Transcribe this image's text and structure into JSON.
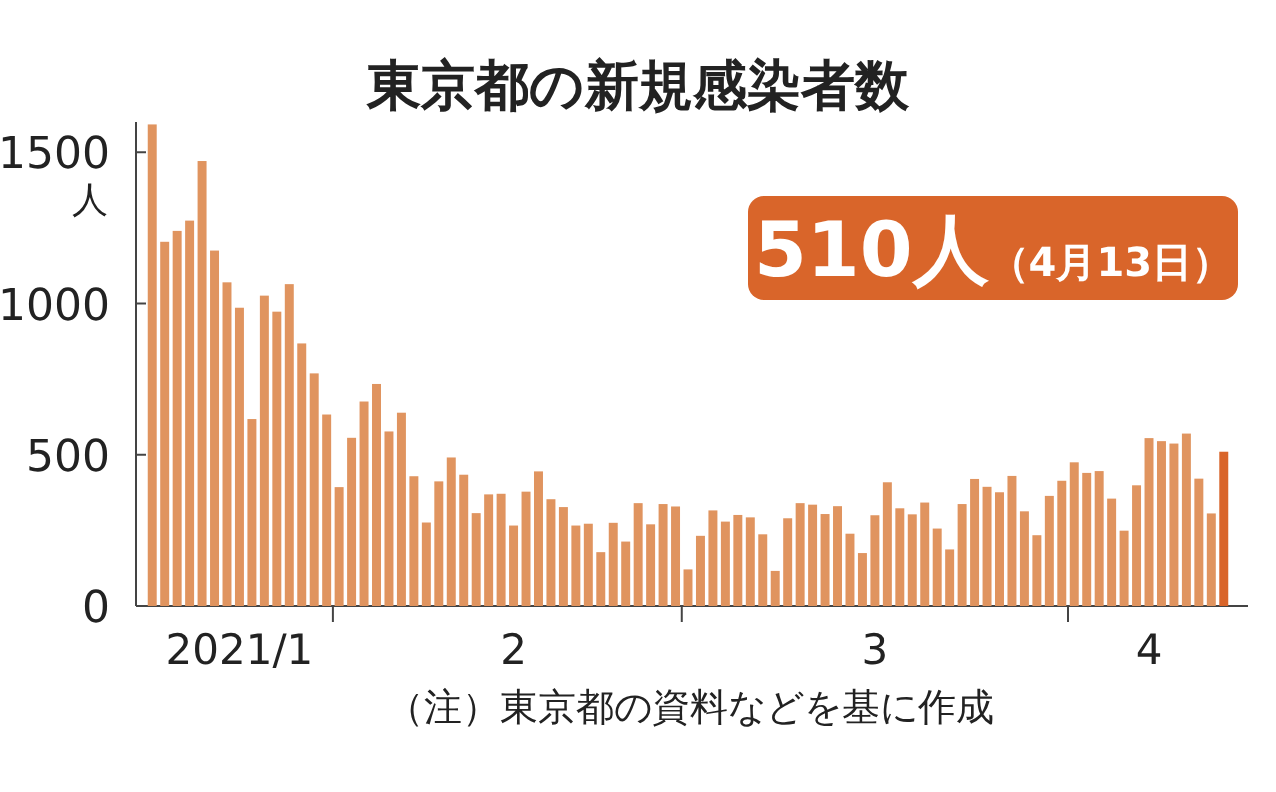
{
  "chart_data": {
    "type": "bar",
    "title": "東京都の新規感染者数",
    "ylabel": "人",
    "x": [
      "2021-01-17",
      "2021-01-18",
      "2021-01-19",
      "2021-01-20",
      "2021-01-21",
      "2021-01-22",
      "2021-01-23",
      "2021-01-24",
      "2021-01-25",
      "2021-01-26",
      "2021-01-27",
      "2021-01-28",
      "2021-01-29",
      "2021-01-30",
      "2021-01-31",
      "2021-02-01",
      "2021-02-02",
      "2021-02-03",
      "2021-02-04",
      "2021-02-05",
      "2021-02-06",
      "2021-02-07",
      "2021-02-08",
      "2021-02-09",
      "2021-02-10",
      "2021-02-11",
      "2021-02-12",
      "2021-02-13",
      "2021-02-14",
      "2021-02-15",
      "2021-02-16",
      "2021-02-17",
      "2021-02-18",
      "2021-02-19",
      "2021-02-20",
      "2021-02-21",
      "2021-02-22",
      "2021-02-23",
      "2021-02-24",
      "2021-02-25",
      "2021-02-26",
      "2021-02-27",
      "2021-02-28",
      "2021-03-01",
      "2021-03-02",
      "2021-03-03",
      "2021-03-04",
      "2021-03-05",
      "2021-03-06",
      "2021-03-07",
      "2021-03-08",
      "2021-03-09",
      "2021-03-10",
      "2021-03-11",
      "2021-03-12",
      "2021-03-13",
      "2021-03-14",
      "2021-03-15",
      "2021-03-16",
      "2021-03-17",
      "2021-03-18",
      "2021-03-19",
      "2021-03-20",
      "2021-03-21",
      "2021-03-22",
      "2021-03-23",
      "2021-03-24",
      "2021-03-25",
      "2021-03-26",
      "2021-03-27",
      "2021-03-28",
      "2021-03-29",
      "2021-03-30",
      "2021-03-31",
      "2021-04-01",
      "2021-04-02",
      "2021-04-03",
      "2021-04-04",
      "2021-04-05",
      "2021-04-06",
      "2021-04-07",
      "2021-04-08",
      "2021-04-09",
      "2021-04-10",
      "2021-04-11",
      "2021-04-12",
      "2021-04-13"
    ],
    "values": [
      1592,
      1204,
      1240,
      1274,
      1471,
      1175,
      1070,
      986,
      618,
      1026,
      973,
      1064,
      868,
      769,
      633,
      393,
      556,
      676,
      734,
      577,
      639,
      429,
      276,
      412,
      491,
      434,
      307,
      369,
      371,
      266,
      378,
      445,
      353,
      327,
      266,
      272,
      178,
      275,
      213,
      340,
      270,
      337,
      329,
      121,
      232,
      316,
      279,
      301,
      293,
      237,
      116,
      290,
      340,
      335,
      304,
      330,
      239,
      175,
      300,
      409,
      323,
      303,
      342,
      256,
      187,
      337,
      420,
      394,
      376,
      430,
      313,
      234,
      364,
      414,
      475,
      440,
      446,
      355,
      249,
      399,
      555,
      545,
      537,
      570,
      421,
      306,
      510
    ],
    "colors": [
      "#e0945f",
      "#e0945f",
      "#e0945f",
      "#e0945f",
      "#e0945f",
      "#e0945f",
      "#e0945f",
      "#e0945f",
      "#e0945f",
      "#e0945f",
      "#e0945f",
      "#e0945f",
      "#e0945f",
      "#e0945f",
      "#e0945f",
      "#e0945f",
      "#e0945f",
      "#e0945f",
      "#e0945f",
      "#e0945f",
      "#e0945f",
      "#e0945f",
      "#e0945f",
      "#e0945f",
      "#e0945f",
      "#e0945f",
      "#e0945f",
      "#e0945f",
      "#e0945f",
      "#e0945f",
      "#e0945f",
      "#e0945f",
      "#e0945f",
      "#e0945f",
      "#e0945f",
      "#e0945f",
      "#e0945f",
      "#e0945f",
      "#e0945f",
      "#e0945f",
      "#e0945f",
      "#e0945f",
      "#e0945f",
      "#e0945f",
      "#e0945f",
      "#e0945f",
      "#e0945f",
      "#e0945f",
      "#e0945f",
      "#e0945f",
      "#e0945f",
      "#e0945f",
      "#e0945f",
      "#e0945f",
      "#e0945f",
      "#e0945f",
      "#e0945f",
      "#e0945f",
      "#e0945f",
      "#e0945f",
      "#e0945f",
      "#e0945f",
      "#e0945f",
      "#e0945f",
      "#e0945f",
      "#e0945f",
      "#e0945f",
      "#e0945f",
      "#e0945f",
      "#e0945f",
      "#e0945f",
      "#e0945f",
      "#e0945f",
      "#e0945f",
      "#e0945f",
      "#e0945f",
      "#e0945f",
      "#e0945f",
      "#e0945f",
      "#e0945f",
      "#e0945f",
      "#e0945f",
      "#e0945f",
      "#e0945f",
      "#e0945f",
      "#e0945f",
      "#d9652a"
    ],
    "xlim": [
      "2021-01-16T12:00",
      "2021-04-13T12:00"
    ],
    "xticks": [
      {
        "value": "2021-01-24",
        "label": "2021/1"
      },
      {
        "value": "2021-01-31T12:00",
        "label": null
      },
      {
        "value": "2021-02-15",
        "label": "2"
      },
      {
        "value": "2021-02-28T12:00",
        "label": null
      },
      {
        "value": "2021-03-16",
        "label": "3"
      },
      {
        "value": "2021-03-31T12:00",
        "label": null
      },
      {
        "value": "2021-04-07",
        "label": "4"
      }
    ],
    "ylim": [
      0,
      1600
    ],
    "yticks": [
      0,
      500,
      1000,
      1500
    ],
    "annotations": [
      "510人（4月13日）",
      "（注）東京都の資料などを基に作成"
    ]
  }
}
